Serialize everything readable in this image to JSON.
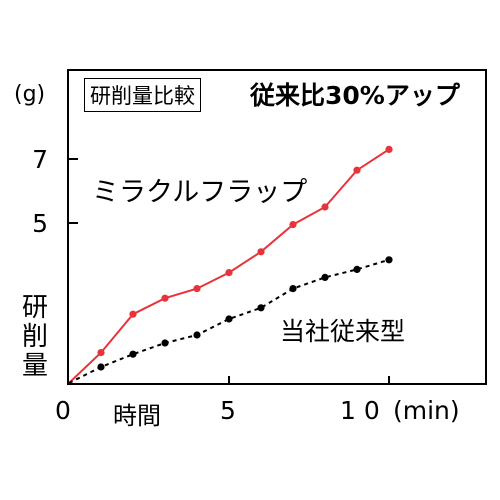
{
  "chart_data": {
    "type": "line",
    "title": "研削量比較",
    "subtitle": "従来比30%アップ",
    "xlabel": "時間",
    "ylabel": "研削量",
    "y_unit": "(g)",
    "x_unit_label": "(min)",
    "xlim": [
      0,
      10.5
    ],
    "ylim": [
      0,
      8
    ],
    "y_ticks": [
      {
        "value": 5,
        "label": "5"
      },
      {
        "value": 7,
        "label": "7"
      }
    ],
    "x_ticks": [
      {
        "value": 0,
        "label": "0"
      },
      {
        "value": 5,
        "label": "5"
      },
      {
        "value": 10,
        "label": "1 0"
      }
    ],
    "series": [
      {
        "name": "ミラクルフラップ",
        "color": "#e8333a",
        "line_style": "solid",
        "x": [
          0,
          1,
          2,
          3,
          4,
          5,
          6,
          7,
          8,
          9,
          10
        ],
        "y": [
          0,
          0.95,
          2.15,
          2.65,
          2.95,
          3.45,
          4.1,
          4.95,
          5.5,
          6.65,
          7.3
        ]
      },
      {
        "name": "当社従来型",
        "color": "#000000",
        "line_style": "dashed",
        "x": [
          0,
          1,
          2,
          3,
          4,
          5,
          6,
          7,
          8,
          9,
          10
        ],
        "y": [
          0,
          0.5,
          0.9,
          1.25,
          1.5,
          2.0,
          2.35,
          2.95,
          3.3,
          3.55,
          3.85
        ]
      }
    ]
  }
}
